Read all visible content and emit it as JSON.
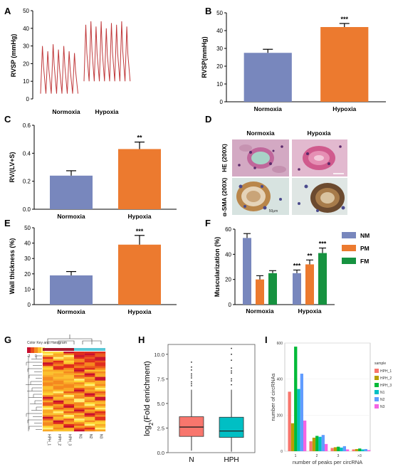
{
  "panels": {
    "A": {
      "label": "A",
      "ylabel": "RVSP (mmHg)",
      "yticks": [
        "0",
        "10",
        "20",
        "30",
        "40",
        "50"
      ],
      "groups": [
        "Normoxia",
        "Hypoxia"
      ]
    },
    "B": {
      "label": "B",
      "sig": "***"
    },
    "C": {
      "label": "C",
      "sig": "**"
    },
    "D": {
      "label": "D",
      "columns": [
        "Normoxia",
        "Hypoxia"
      ],
      "rows": [
        "HE (200X)",
        "α-SMA (200X)"
      ],
      "scale_text": "50μm"
    },
    "E": {
      "label": "E",
      "sig": "***"
    },
    "F": {
      "label": "F",
      "sigs": [
        "***",
        "**",
        "***"
      ]
    },
    "G": {
      "label": "G",
      "key_title": "Color Key and Histogram",
      "key_range": [
        "-2",
        "0",
        "2"
      ],
      "samples": [
        "HPH_1",
        "HPH_2",
        "HPH_3",
        "N1",
        "N2",
        "N3"
      ]
    },
    "H": {
      "label": "H"
    },
    "I": {
      "label": "I"
    }
  },
  "colors": {
    "blue": "#7887bd",
    "orange": "#ec7a2f",
    "green": "#169240",
    "salmon": "#f8766d",
    "teal": "#00bfc4"
  },
  "chart_data": [
    {
      "panel": "A",
      "type": "line",
      "title": "",
      "xlabel": "",
      "ylabel": "RVSP (mmHg)",
      "ylim": [
        0,
        50
      ],
      "series": [
        {
          "name": "Normoxia",
          "min": 3,
          "max": [
            30,
            27,
            31,
            28,
            30,
            27,
            26
          ]
        },
        {
          "name": "Hypoxia",
          "min": 10,
          "max": [
            42,
            44,
            41,
            44,
            40,
            43,
            42,
            44,
            41
          ]
        }
      ]
    },
    {
      "panel": "B",
      "type": "bar",
      "categories": [
        "Normoxia",
        "Hypoxia"
      ],
      "values": [
        27.5,
        42
      ],
      "errors": [
        2,
        2
      ],
      "ylabel": "RVSP(mmHg)",
      "ylim": [
        0,
        50
      ],
      "yticks": [
        0,
        10,
        20,
        30,
        40,
        50
      ]
    },
    {
      "panel": "C",
      "type": "bar",
      "categories": [
        "Normoxia",
        "Hypoxia"
      ],
      "values": [
        0.24,
        0.43
      ],
      "errors": [
        0.035,
        0.05
      ],
      "ylabel": "RV/(LV+S)",
      "ylim": [
        0,
        0.6
      ],
      "yticks": [
        0.0,
        0.2,
        0.4,
        0.6
      ]
    },
    {
      "panel": "E",
      "type": "bar",
      "categories": [
        "Normoxia",
        "Hypoxia"
      ],
      "values": [
        19,
        39
      ],
      "errors": [
        2.5,
        6
      ],
      "ylabel": "Wall thickness (%)",
      "ylim": [
        0,
        50
      ],
      "yticks": [
        0,
        10,
        20,
        30,
        40,
        50
      ]
    },
    {
      "panel": "F",
      "type": "bar",
      "categories": [
        "Normoxia",
        "Hypoxia"
      ],
      "series": [
        {
          "name": "NM",
          "values": [
            53,
            25
          ],
          "errors": [
            3.5,
            2.5
          ]
        },
        {
          "name": "PM",
          "values": [
            20,
            32
          ],
          "errors": [
            3,
            3.5
          ]
        },
        {
          "name": "FM",
          "values": [
            25,
            41
          ],
          "errors": [
            2,
            4
          ]
        }
      ],
      "ylabel": "Muscularization (%)",
      "ylim": [
        0,
        60
      ],
      "yticks": [
        0,
        20,
        40,
        60
      ],
      "legend": "top-right"
    },
    {
      "panel": "H",
      "type": "box",
      "categories": [
        "N",
        "HPH"
      ],
      "xlabel": "",
      "ylabel": "log2(Fold enrichment)",
      "ylim": [
        0,
        11
      ],
      "yticks": [
        0.0,
        2.5,
        5.0,
        7.5,
        10.0
      ],
      "boxes": [
        {
          "name": "N",
          "q1": 1.65,
          "median": 2.6,
          "q3": 3.65,
          "whisker_low": 0.2,
          "whisker_high": 6.4,
          "outliers": [
            6.8,
            7.0,
            7.2,
            7.6,
            7.8,
            8.0,
            8.4,
            8.7,
            9.2
          ]
        },
        {
          "name": "HPH",
          "q1": 1.55,
          "median": 2.2,
          "q3": 3.6,
          "whisker_low": 0.1,
          "whisker_high": 6.4,
          "outliers": [
            6.9,
            7.3,
            7.5,
            8.1,
            8.3,
            8.6,
            9.4,
            10.0,
            10.6
          ]
        }
      ]
    },
    {
      "panel": "I",
      "type": "bar",
      "xlabel": "number of peaks per circRNA",
      "ylabel": "number of circRNAs",
      "categories": [
        "1",
        "2",
        "3",
        ">3"
      ],
      "ylim": [
        0,
        600
      ],
      "yticks": [
        0,
        200,
        400,
        600
      ],
      "legend_title": "sample",
      "legend": "right",
      "series": [
        {
          "name": "HPH_1",
          "values": [
            330,
            55,
            18,
            10
          ]
        },
        {
          "name": "HPH_2",
          "values": [
            155,
            75,
            22,
            12
          ]
        },
        {
          "name": "HPH_3",
          "values": [
            580,
            85,
            25,
            15
          ]
        },
        {
          "name": "N1",
          "values": [
            345,
            80,
            20,
            10
          ]
        },
        {
          "name": "N2",
          "values": [
            430,
            90,
            28,
            12
          ]
        },
        {
          "name": "N3",
          "values": [
            170,
            40,
            10,
            6
          ]
        }
      ]
    }
  ]
}
